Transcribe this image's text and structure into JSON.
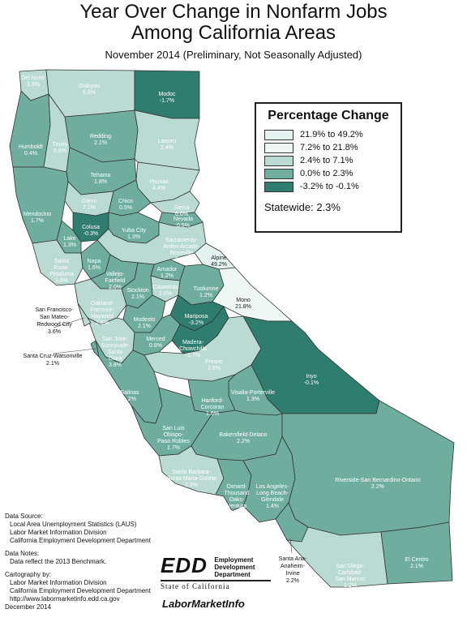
{
  "title": "Year Over Change in Nonfarm Jobs Among California Areas",
  "title_line1": "Year Over Change in Nonfarm Jobs",
  "title_line2": "Among California Areas",
  "subtitle": "November 2014 (Preliminary, Not Seasonally Adjusted)",
  "legend": {
    "title": "Percentage Change",
    "classes": [
      {
        "label": "21.9% to 49.2%",
        "color": "#e3f2ee"
      },
      {
        "label": "7.2% to 21.8%",
        "color": "#eef7f4"
      },
      {
        "label": "2.4% to 7.1%",
        "color": "#b9dbd1"
      },
      {
        "label": "0.0% to 2.3%",
        "color": "#6fae9f"
      },
      {
        "label": "-3.2% to -0.1%",
        "color": "#2f7d6e"
      }
    ],
    "statewide": "Statewide: 2.3%"
  },
  "regions": [
    {
      "name": "Del Norte",
      "value": "3.3%",
      "cls": 2
    },
    {
      "name": "Siskiyou",
      "value": "5.9%",
      "cls": 2
    },
    {
      "name": "Modoc",
      "value": "-1.7%",
      "cls": 4
    },
    {
      "name": "Humboldt",
      "value": "0.4%",
      "cls": 3
    },
    {
      "name": "Trinity",
      "value": "6.6%",
      "cls": 2
    },
    {
      "name": "Redding",
      "value": "2.1%",
      "cls": 3
    },
    {
      "name": "Lassen",
      "value": "2.4%",
      "cls": 2
    },
    {
      "name": "Tehama",
      "value": "1.8%",
      "cls": 3
    },
    {
      "name": "Plumas",
      "value": "4.4%",
      "cls": 2
    },
    {
      "name": "Glenn",
      "value": "7.1%",
      "cls": 2
    },
    {
      "name": "Chico",
      "value": "0.5%",
      "cls": 3
    },
    {
      "name": "Sierra",
      "value": "6.6%",
      "cls": 2
    },
    {
      "name": "Nevada",
      "value": "0.5%",
      "cls": 3
    },
    {
      "name": "Mendocino",
      "value": "1.7%",
      "cls": 3
    },
    {
      "name": "Colusa",
      "value": "-0.3%",
      "cls": 4
    },
    {
      "name": "Yuba City",
      "value": "1.3%",
      "cls": 3
    },
    {
      "name": "Lake",
      "value": "1.3%",
      "cls": 3
    },
    {
      "name": "Sacramento-Arden-Arcade-Roseville",
      "value": "2.6%",
      "cls": 2
    },
    {
      "name": "Santa Rosa-Petaluma",
      "value": "3.6%",
      "cls": 2
    },
    {
      "name": "Napa",
      "value": "1.6%",
      "cls": 3
    },
    {
      "name": "Vallejo-Fairfield",
      "value": "2.0%",
      "cls": 3
    },
    {
      "name": "Amador",
      "value": "1.2%",
      "cls": 3
    },
    {
      "name": "Alpine",
      "value": "49.2%",
      "cls": 0
    },
    {
      "name": "Calaveras",
      "value": "2.6%",
      "cls": 2
    },
    {
      "name": "Tuolumne",
      "value": "1.2%",
      "cls": 3
    },
    {
      "name": "Stockton",
      "value": "2.1%",
      "cls": 3
    },
    {
      "name": "Oakland-Fremont-Hayward",
      "value": "2.8%",
      "cls": 2
    },
    {
      "name": "Mono",
      "value": "21.8%",
      "cls": 1
    },
    {
      "name": "Modesto",
      "value": "2.1%",
      "cls": 3
    },
    {
      "name": "Mariposa",
      "value": "-3.2%",
      "cls": 4
    },
    {
      "name": "San Jose-Sunnyvale-Santa Clara",
      "value": "3.8%",
      "cls": 2
    },
    {
      "name": "Merced",
      "value": "0.8%",
      "cls": 3
    },
    {
      "name": "Madera-Chowchilla",
      "value": "-1.7%",
      "cls": 4
    },
    {
      "name": "Fresno",
      "value": "2.6%",
      "cls": 2
    },
    {
      "name": "Inyo",
      "value": "-0.1%",
      "cls": 4
    },
    {
      "name": "Salinas",
      "value": "1.2%",
      "cls": 3
    },
    {
      "name": "Visalia-Porterville",
      "value": "1.3%",
      "cls": 3
    },
    {
      "name": "Hanford-Corcoran",
      "value": "1.6%",
      "cls": 3
    },
    {
      "name": "San Luis Obispo-Paso Robles",
      "value": "1.7%",
      "cls": 3
    },
    {
      "name": "Bakersfield-Delano",
      "value": "2.2%",
      "cls": 3
    },
    {
      "name": "Santa Barbara-Santa Maria-Goleta",
      "value": "2.9%",
      "cls": 2
    },
    {
      "name": "Oxnard-Thousand Oaks-Ventura",
      "value": "1.9%",
      "cls": 3
    },
    {
      "name": "Los Angeles-Long Beach-Glendale",
      "value": "1.4%",
      "cls": 3
    },
    {
      "name": "Riverside-San Bernardino-Ontario",
      "value": "2.2%",
      "cls": 3
    },
    {
      "name": "Santa Ana-Anaheim-Irvine",
      "value": "2.2%",
      "cls": 3
    },
    {
      "name": "San Diego-Carlsbad-San Marcos",
      "value": "3.2%",
      "cls": 2
    },
    {
      "name": "El Centro",
      "value": "2.1%",
      "cls": 3
    },
    {
      "name": "San Francisco-San Mateo-Redwood City",
      "value": "3.6%",
      "cls": 2
    },
    {
      "name": "Santa Cruz-Watsonville",
      "value": "2.1%",
      "cls": 3
    }
  ],
  "external_labels": {
    "sf": {
      "line1": "San Francisco-",
      "line2": "San Mateo-",
      "line3": "Redwood City",
      "value": "3.6%"
    },
    "sc": {
      "line1": "Santa Cruz-Watsonville",
      "value": "2.1%"
    },
    "sa": {
      "line1": "Santa Ana-",
      "line2": "Anaheim-",
      "line3": "Irvine",
      "value": "2.2%"
    }
  },
  "notes": {
    "source_head": "Data Source:",
    "source1": "Local Area Unemployment Statistics (LAUS)",
    "source2": "Labor Market Information Division",
    "source3": "California Employment Development Department",
    "notes_head": "Data Notes:",
    "notes1": "Data reflect the 2013 Benchmark.",
    "carto_head": "Cartography by:",
    "carto1": "Labor Market Information Division",
    "carto2": "California Employment Development Department",
    "carto3": "http://www.labormarketinfo.edd.ca.gov",
    "carto4": "December 2014"
  },
  "logo": {
    "mark": "EDD",
    "org1": "Employment",
    "org2": "Development",
    "org3": "Department",
    "state": "State of California",
    "lmi": "LaborMarketInfo"
  }
}
